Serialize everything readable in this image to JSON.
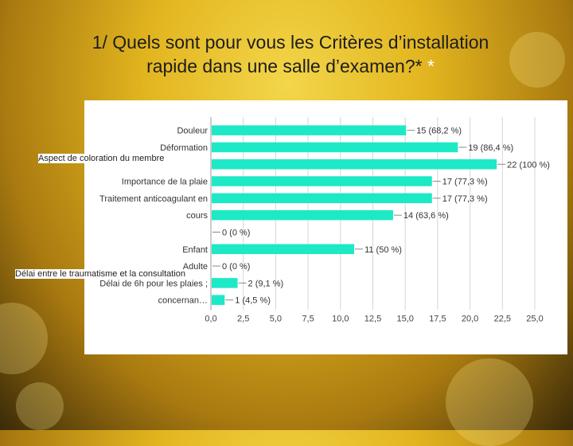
{
  "slide": {
    "title_line1": "1/ Quels sont pour vous les Critères d’installation",
    "title_line2": "rapide dans une salle d’examen?*",
    "title_star": " *"
  },
  "overlay_labels": {
    "left_top": "Aspect de coloration du membre",
    "left_bottom": "Délai entre le traumatisme et la consultation"
  },
  "colors": {
    "bar": "#1de9c6",
    "grid": "#d6d6d6"
  },
  "chart_data": {
    "type": "bar",
    "orientation": "horizontal",
    "categories": [
      "Douleur",
      "Déformation",
      "",
      "Importance de la plaie",
      "Traitement anticoagulant en",
      "cours",
      "",
      "Enfant",
      "Adulte",
      "Délai de 6h pour les plaies ;",
      "concernan…"
    ],
    "values": [
      15,
      19,
      22,
      17,
      17,
      14,
      0,
      11,
      0,
      2,
      1
    ],
    "data_labels": [
      "15 (68,2 %)",
      "19 (86,4 %)",
      "22 (100 %)",
      "17 (77,3 %)",
      "17 (77,3 %)",
      "14 (63,6 %)",
      "0 (0 %)",
      "11 (50 %)",
      "0 (0 %)",
      "2 (9,1 %)",
      "1 (4,5 %)"
    ],
    "x_ticks": [
      "0,0",
      "2,5",
      "5,0",
      "7,5",
      "10,0",
      "12,5",
      "15,0",
      "17,5",
      "20,0",
      "22,5",
      "25,0"
    ],
    "xlim": [
      0,
      25
    ],
    "grid": true,
    "legend": "none"
  }
}
